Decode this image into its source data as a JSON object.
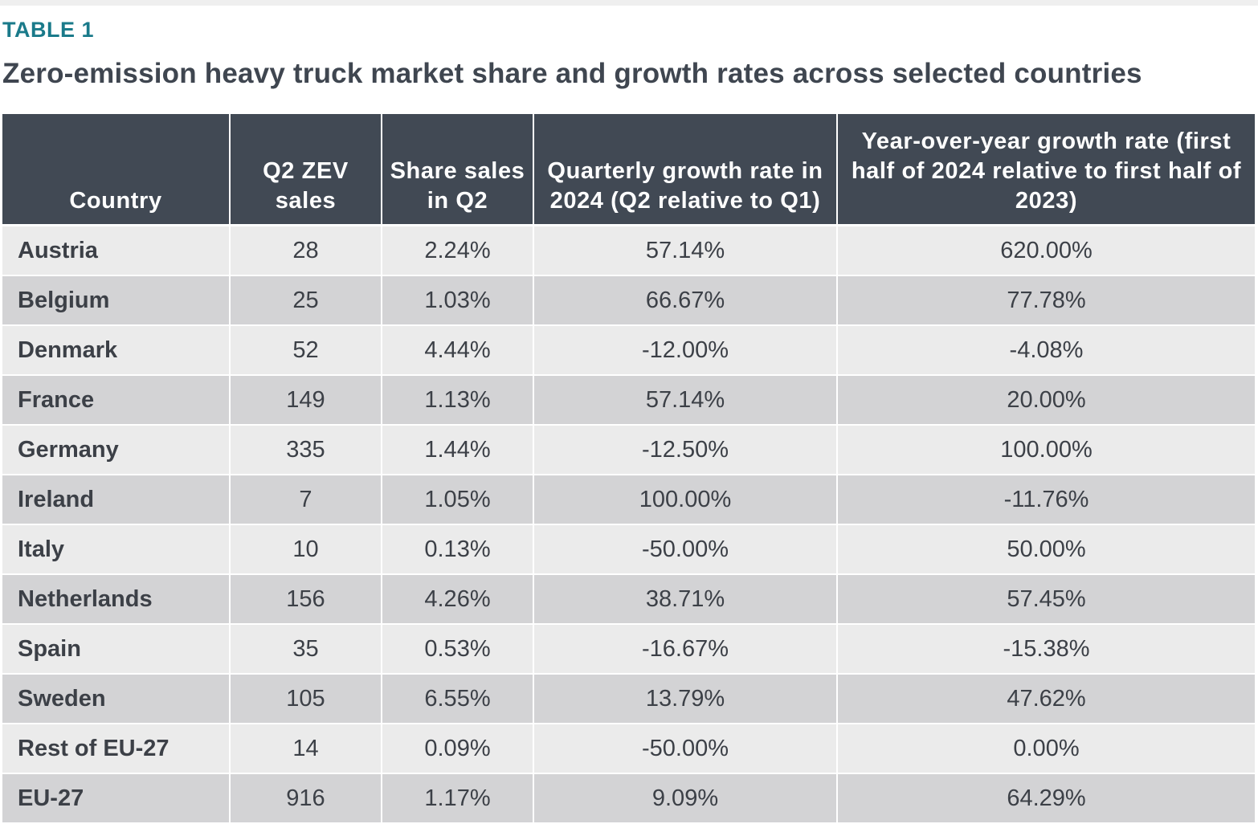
{
  "label": "TABLE 1",
  "title": "Zero-emission heavy truck market share and growth rates across selected countries",
  "table": {
    "headers": [
      "Country",
      "Q2 ZEV sales",
      "Share sales in Q2",
      "Quarterly growth rate in 2024 (Q2 relative to Q1)",
      "Year-over-year growth rate (first half of 2024 relative to first half of 2023)"
    ],
    "rows": [
      {
        "country": "Austria",
        "q2_sales": "28",
        "share": "2.24%",
        "quarterly_growth": "57.14%",
        "yoy_growth": "620.00%"
      },
      {
        "country": "Belgium",
        "q2_sales": "25",
        "share": "1.03%",
        "quarterly_growth": "66.67%",
        "yoy_growth": "77.78%"
      },
      {
        "country": "Denmark",
        "q2_sales": "52",
        "share": "4.44%",
        "quarterly_growth": "-12.00%",
        "yoy_growth": "-4.08%"
      },
      {
        "country": "France",
        "q2_sales": "149",
        "share": "1.13%",
        "quarterly_growth": "57.14%",
        "yoy_growth": "20.00%"
      },
      {
        "country": "Germany",
        "q2_sales": "335",
        "share": "1.44%",
        "quarterly_growth": "-12.50%",
        "yoy_growth": "100.00%"
      },
      {
        "country": "Ireland",
        "q2_sales": "7",
        "share": "1.05%",
        "quarterly_growth": "100.00%",
        "yoy_growth": "-11.76%"
      },
      {
        "country": "Italy",
        "q2_sales": "10",
        "share": "0.13%",
        "quarterly_growth": "-50.00%",
        "yoy_growth": "50.00%"
      },
      {
        "country": "Netherlands",
        "q2_sales": "156",
        "share": "4.26%",
        "quarterly_growth": "38.71%",
        "yoy_growth": "57.45%"
      },
      {
        "country": "Spain",
        "q2_sales": "35",
        "share": "0.53%",
        "quarterly_growth": "-16.67%",
        "yoy_growth": "-15.38%"
      },
      {
        "country": "Sweden",
        "q2_sales": "105",
        "share": "6.55%",
        "quarterly_growth": "13.79%",
        "yoy_growth": "47.62%"
      },
      {
        "country": "Rest of EU-27",
        "q2_sales": "14",
        "share": "0.09%",
        "quarterly_growth": "-50.00%",
        "yoy_growth": "0.00%"
      },
      {
        "country": "EU-27",
        "q2_sales": "916",
        "share": "1.17%",
        "quarterly_growth": "9.09%",
        "yoy_growth": "64.29%"
      }
    ]
  },
  "colors": {
    "label": "#1a7a8a",
    "title": "#3f4650",
    "header_bg": "#414954",
    "row_light": "#ebebeb",
    "row_dark": "#d3d3d5"
  }
}
